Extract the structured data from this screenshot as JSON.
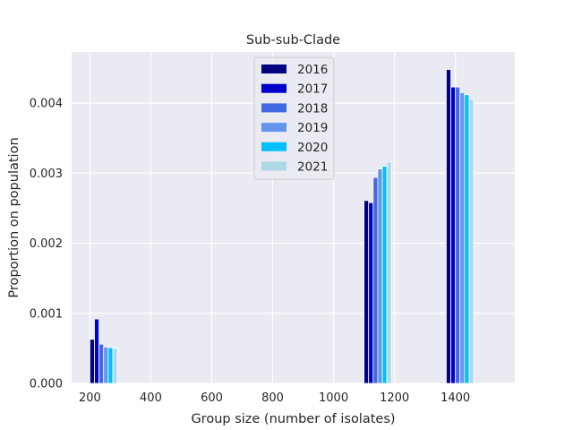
{
  "chart_data": {
    "type": "bar",
    "title": "Sub-sub-Clade",
    "xlabel": "Group size (number of isolates)",
    "ylabel": "Proportion on population",
    "xlim": [
      140,
      1595
    ],
    "ylim": [
      0,
      0.00473
    ],
    "xticks": [
      200,
      400,
      600,
      800,
      1000,
      1200,
      1400
    ],
    "xtick_labels": [
      "200",
      "400",
      "600",
      "800",
      "1000",
      "1200",
      "1400"
    ],
    "yticks": [
      0,
      0.001,
      0.002,
      0.003,
      0.004
    ],
    "ytick_labels": [
      "0.000",
      "0.001",
      "0.002",
      "0.003",
      "0.004"
    ],
    "grid": true,
    "legend_position": "top-center",
    "groups": [
      200,
      1100,
      1370
    ],
    "bar_width": 15,
    "series": [
      {
        "name": "2016",
        "color": "#000080",
        "values": [
          0.00063,
          0.00261,
          0.00448
        ]
      },
      {
        "name": "2017",
        "color": "#0000CD",
        "values": [
          0.00092,
          0.00258,
          0.00423
        ]
      },
      {
        "name": "2018",
        "color": "#4169E1",
        "values": [
          0.00056,
          0.00294,
          0.00423
        ]
      },
      {
        "name": "2019",
        "color": "#6495ED",
        "values": [
          0.00052,
          0.00306,
          0.00415
        ]
      },
      {
        "name": "2020",
        "color": "#00BFFF",
        "values": [
          0.00051,
          0.0031,
          0.00412
        ]
      },
      {
        "name": "2021",
        "color": "#ADD8E6",
        "values": [
          0.0005,
          0.00316,
          0.00406
        ]
      }
    ]
  }
}
